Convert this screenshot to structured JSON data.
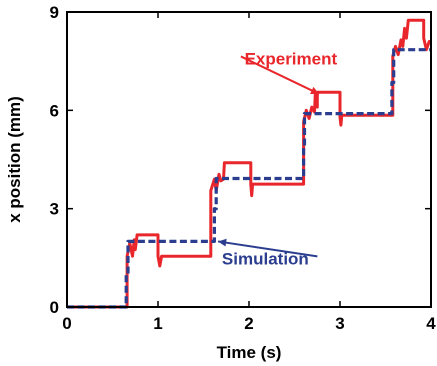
{
  "chart_data": {
    "type": "line",
    "title": "",
    "xlabel": "Time (s)",
    "ylabel": "x position (mm)",
    "xlim": [
      0,
      4
    ],
    "ylim": [
      0,
      9
    ],
    "xticks": [
      0,
      1,
      2,
      3,
      4
    ],
    "xtick_labels": [
      "0",
      "1",
      "2",
      "3",
      "4"
    ],
    "yticks": [
      0,
      3,
      6,
      9
    ],
    "ytick_labels": [
      "0",
      "3",
      "6",
      "9"
    ],
    "grid": false,
    "legend": "none",
    "series": [
      {
        "name": "Experiment",
        "color": "#e8262b",
        "style": "solid",
        "x": [
          0.0,
          0.66,
          0.66,
          0.69,
          0.72,
          0.74,
          0.75,
          0.77,
          0.8,
          0.8,
          1.0,
          1.0,
          1.02,
          1.04,
          1.04,
          1.58,
          1.58,
          1.62,
          1.64,
          1.67,
          1.69,
          1.72,
          1.73,
          1.76,
          1.76,
          2.02,
          2.02,
          2.03,
          2.04,
          2.05,
          2.6,
          2.6,
          2.63,
          2.66,
          2.69,
          2.72,
          2.73,
          2.75,
          2.75,
          2.79,
          2.79,
          3.0,
          3.0,
          3.01,
          3.02,
          3.02,
          3.58,
          3.58,
          3.61,
          3.64,
          3.67,
          3.69,
          3.71,
          3.73,
          3.75,
          3.75,
          3.79,
          3.79,
          3.92,
          3.92,
          3.95,
          3.98,
          4.0
        ],
        "y": [
          0.0,
          0.0,
          1.55,
          1.95,
          1.55,
          2.05,
          1.75,
          2.2,
          2.2,
          2.2,
          2.2,
          1.55,
          1.25,
          1.55,
          1.55,
          1.55,
          3.55,
          3.9,
          3.55,
          4.05,
          3.85,
          3.9,
          4.4,
          4.4,
          4.4,
          4.4,
          3.75,
          3.4,
          3.75,
          3.75,
          3.75,
          5.65,
          6.0,
          5.75,
          6.1,
          5.95,
          6.55,
          6.1,
          6.55,
          6.55,
          6.55,
          6.55,
          5.8,
          5.55,
          5.85,
          5.85,
          5.85,
          7.65,
          7.95,
          7.7,
          8.15,
          7.95,
          8.5,
          8.2,
          8.75,
          8.75,
          8.75,
          8.75,
          8.75,
          8.2,
          7.85,
          8.1,
          8.1
        ]
      },
      {
        "name": "Simulation",
        "color": "#2b3d8f",
        "style": "dashed",
        "x": [
          0.0,
          0.65,
          0.65,
          0.67,
          0.67,
          1.62,
          1.62,
          1.64,
          1.64,
          2.6,
          2.6,
          2.61,
          2.61,
          3.57,
          3.57,
          3.59,
          3.59,
          4.0
        ],
        "y": [
          0.0,
          0.0,
          1.0,
          1.0,
          2.0,
          2.0,
          3.0,
          3.0,
          3.92,
          3.92,
          4.9,
          4.9,
          5.9,
          5.9,
          6.85,
          6.85,
          7.85,
          7.85
        ]
      }
    ],
    "annotations": [
      {
        "text": "Experiment",
        "color": "#e8262b",
        "x": 2.46,
        "y": 7.4,
        "arrow_to": [
          2.77,
          6.5
        ]
      },
      {
        "text": "Simulation",
        "color": "#2b3d8f",
        "x": 2.18,
        "y": 1.3,
        "arrow_to": [
          1.66,
          2.0
        ]
      }
    ]
  }
}
